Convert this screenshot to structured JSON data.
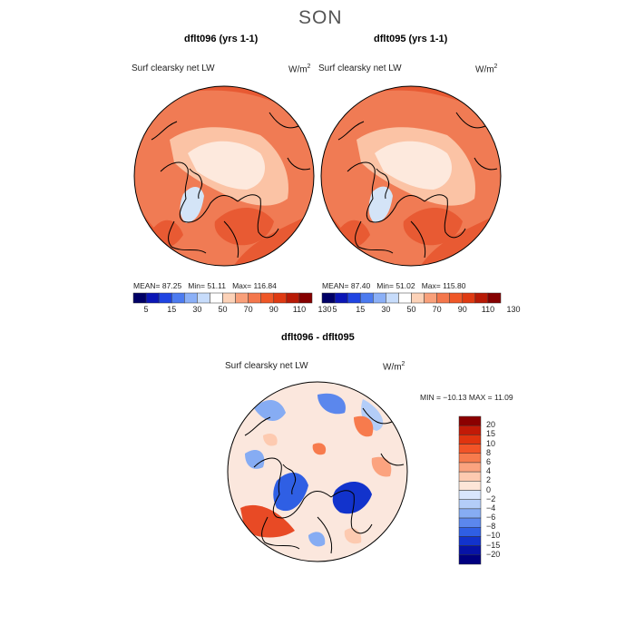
{
  "season": "SON",
  "panels": [
    {
      "title": "dflt096 (yrs 1-1)",
      "variable": "Surf clearsky net LW",
      "units": "W/m",
      "units_sup": "2",
      "mean_label": "MEAN=",
      "mean": "87.25",
      "min_label": "Min=",
      "min": "51.11",
      "max_label": "Max=",
      "max": "116.84"
    },
    {
      "title": "dflt095 (yrs 1-1)",
      "variable": "Surf clearsky net LW",
      "units": "W/m",
      "units_sup": "2",
      "mean_label": "MEAN=",
      "mean": "87.40",
      "min_label": "Min=",
      "min": "51.02",
      "max_label": "Max=",
      "max": "115.80"
    }
  ],
  "top_colorbar": {
    "labels": [
      "5",
      "15",
      "30",
      "50",
      "70",
      "90",
      "110",
      "130"
    ],
    "colors": [
      "#000066",
      "#0b16b6",
      "#1f44e2",
      "#4c7bf0",
      "#8bb0f7",
      "#c7dcfb",
      "#ffffff",
      "#fcd2b8",
      "#f9a07a",
      "#f4774c",
      "#ef5727",
      "#df3a12",
      "#b81a06",
      "#850000"
    ]
  },
  "diff_panel": {
    "title": "dflt096 - dflt095",
    "variable": "Surf clearsky net LW",
    "units": "W/m",
    "units_sup": "2",
    "minmax": "MIN = −10.13 MAX =  11.09"
  },
  "diff_colorbar": {
    "labels": [
      "20",
      "15",
      "10",
      "8",
      "6",
      "4",
      "2",
      "0",
      "−2",
      "−4",
      "−6",
      "−8",
      "−10",
      "−15",
      "−20"
    ],
    "colors": [
      "#8b0000",
      "#c21a07",
      "#e0340f",
      "#f25427",
      "#f77b4d",
      "#fba37f",
      "#fdcab0",
      "#fde6d8",
      "#d8e6fc",
      "#b3cdf8",
      "#86acf3",
      "#5b87ed",
      "#2f5fe4",
      "#1233cc",
      "#0713a6",
      "#000080"
    ]
  },
  "colors": {
    "map_base": "#f07b54",
    "map_warm": "#e85a33",
    "map_light": "#fbc3a5",
    "map_pale": "#fde9dd",
    "sea_ice": "#d4e4f7",
    "diff_base": "#fbe7dd",
    "diff_blue": "#2f5fe4",
    "diff_red": "#e84a25"
  }
}
